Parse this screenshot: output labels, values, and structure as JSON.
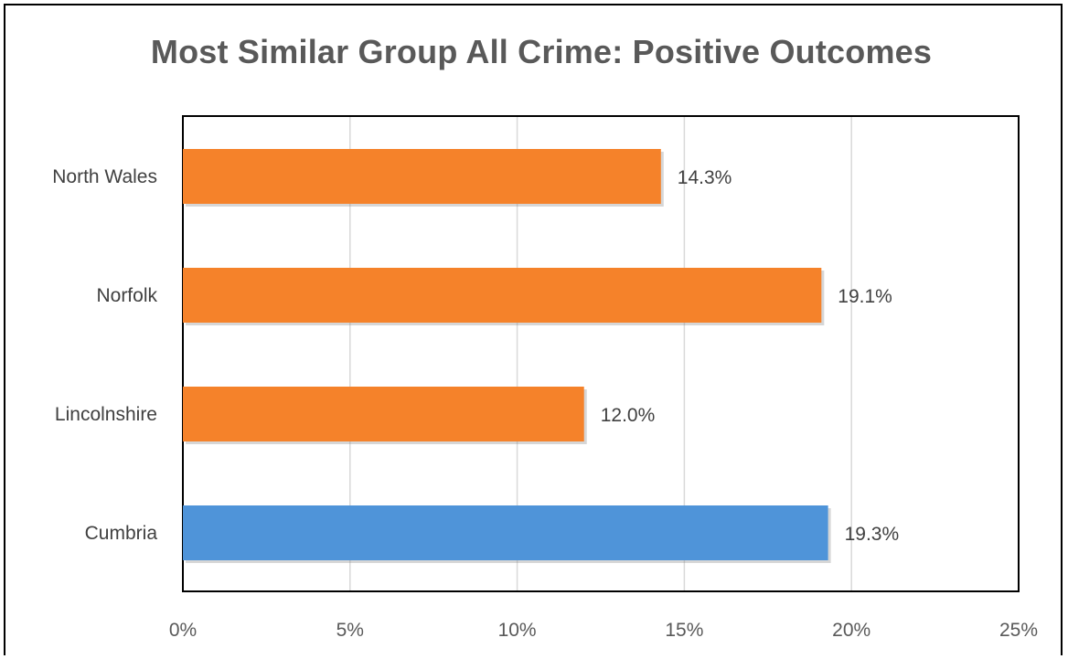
{
  "chart_data": {
    "type": "bar",
    "orientation": "horizontal",
    "title": "Most Similar Group All Crime: Positive Outcomes",
    "categories": [
      "North Wales",
      "Norfolk",
      "Lincolnshire",
      "Cumbria"
    ],
    "values": [
      14.3,
      19.1,
      12.0,
      19.3
    ],
    "data_labels": [
      "14.3%",
      "19.1%",
      "12.0%",
      "19.3%"
    ],
    "bar_colors": [
      "#F5822A",
      "#F5822A",
      "#F5822A",
      "#4F94D9"
    ],
    "xlim": [
      0,
      25
    ],
    "xticks": [
      0,
      5,
      10,
      15,
      20,
      25
    ],
    "xtick_labels": [
      "0%",
      "5%",
      "10%",
      "15%",
      "20%",
      "25%"
    ],
    "grid": "vertical",
    "legend": "none"
  }
}
